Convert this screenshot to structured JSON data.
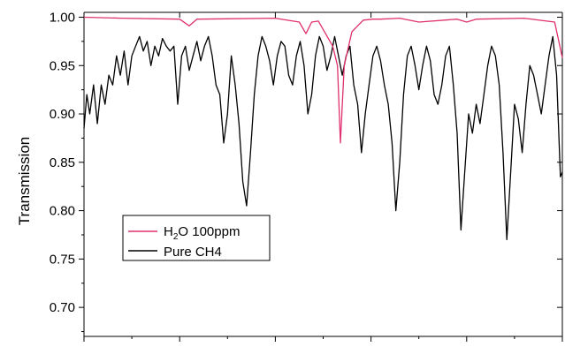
{
  "chart_data": {
    "type": "line",
    "ylabel": "Transmission",
    "xlabel": "",
    "ylim": [
      0.67,
      1.005
    ],
    "xlim": [
      0,
      500
    ],
    "x_tick_labels_visible": false,
    "yticks": [
      {
        "value": 1.0,
        "label": "1.00"
      },
      {
        "value": 0.95,
        "label": "0.95"
      },
      {
        "value": 0.9,
        "label": "0.90"
      },
      {
        "value": 0.85,
        "label": "0.85"
      },
      {
        "value": 0.8,
        "label": "0.80"
      },
      {
        "value": 0.75,
        "label": "0.75"
      },
      {
        "value": 0.7,
        "label": "0.70"
      }
    ],
    "legend_position": "left-middle",
    "series": [
      {
        "name": "H2O 100ppm",
        "legend_main": "H",
        "legend_sub": "2",
        "legend_rest": "O 100ppm",
        "color": "#e0306f",
        "x": [
          0,
          40,
          100,
          110,
          118,
          200,
          225,
          232,
          238,
          245,
          260,
          265,
          268,
          272,
          280,
          292,
          302,
          310,
          330,
          350,
          390,
          400,
          410,
          460,
          492,
          500
        ],
        "y": [
          1.0,
          0.999,
          0.998,
          0.991,
          0.998,
          0.999,
          0.995,
          0.983,
          0.995,
          0.996,
          0.97,
          0.95,
          0.87,
          0.95,
          0.985,
          0.997,
          0.998,
          0.998,
          0.999,
          0.995,
          0.998,
          0.995,
          0.998,
          0.999,
          0.995,
          0.958
        ]
      },
      {
        "name": "Pure CH4",
        "color": "#000000",
        "x": [
          0,
          3,
          6,
          10,
          14,
          18,
          22,
          26,
          30,
          34,
          38,
          42,
          46,
          50,
          54,
          58,
          62,
          66,
          70,
          74,
          78,
          82,
          86,
          90,
          94,
          98,
          102,
          106,
          110,
          114,
          118,
          122,
          126,
          130,
          134,
          138,
          142,
          146,
          150,
          154,
          158,
          162,
          166,
          170,
          174,
          178,
          182,
          186,
          190,
          194,
          198,
          202,
          206,
          210,
          214,
          218,
          222,
          226,
          230,
          234,
          238,
          242,
          246,
          250,
          254,
          258,
          262,
          266,
          270,
          274,
          278,
          282,
          286,
          290,
          294,
          298,
          302,
          306,
          310,
          314,
          318,
          322,
          326,
          330,
          334,
          338,
          342,
          346,
          350,
          354,
          358,
          362,
          366,
          370,
          374,
          378,
          382,
          386,
          390,
          394,
          398,
          402,
          406,
          410,
          414,
          418,
          422,
          426,
          430,
          434,
          438,
          442,
          446,
          450,
          454,
          458,
          462,
          466,
          470,
          474,
          478,
          482,
          486,
          490,
          494,
          498,
          500
        ],
        "y": [
          0.885,
          0.92,
          0.9,
          0.93,
          0.89,
          0.93,
          0.91,
          0.94,
          0.93,
          0.96,
          0.94,
          0.965,
          0.93,
          0.96,
          0.97,
          0.98,
          0.965,
          0.975,
          0.95,
          0.97,
          0.96,
          0.978,
          0.97,
          0.965,
          0.97,
          0.91,
          0.96,
          0.97,
          0.945,
          0.96,
          0.975,
          0.955,
          0.97,
          0.98,
          0.96,
          0.93,
          0.92,
          0.87,
          0.9,
          0.96,
          0.93,
          0.89,
          0.83,
          0.805,
          0.86,
          0.92,
          0.96,
          0.98,
          0.97,
          0.955,
          0.93,
          0.96,
          0.975,
          0.97,
          0.94,
          0.93,
          0.96,
          0.975,
          0.95,
          0.9,
          0.92,
          0.96,
          0.98,
          0.97,
          0.945,
          0.96,
          0.98,
          0.96,
          0.94,
          0.96,
          0.97,
          0.93,
          0.91,
          0.86,
          0.9,
          0.93,
          0.96,
          0.97,
          0.955,
          0.93,
          0.91,
          0.87,
          0.8,
          0.85,
          0.92,
          0.96,
          0.97,
          0.95,
          0.925,
          0.95,
          0.97,
          0.955,
          0.92,
          0.91,
          0.93,
          0.96,
          0.97,
          0.93,
          0.88,
          0.78,
          0.84,
          0.9,
          0.88,
          0.91,
          0.89,
          0.92,
          0.95,
          0.97,
          0.96,
          0.93,
          0.86,
          0.77,
          0.84,
          0.91,
          0.895,
          0.86,
          0.91,
          0.95,
          0.94,
          0.92,
          0.9,
          0.93,
          0.96,
          0.98,
          0.94,
          0.835,
          0.84
        ]
      }
    ]
  }
}
